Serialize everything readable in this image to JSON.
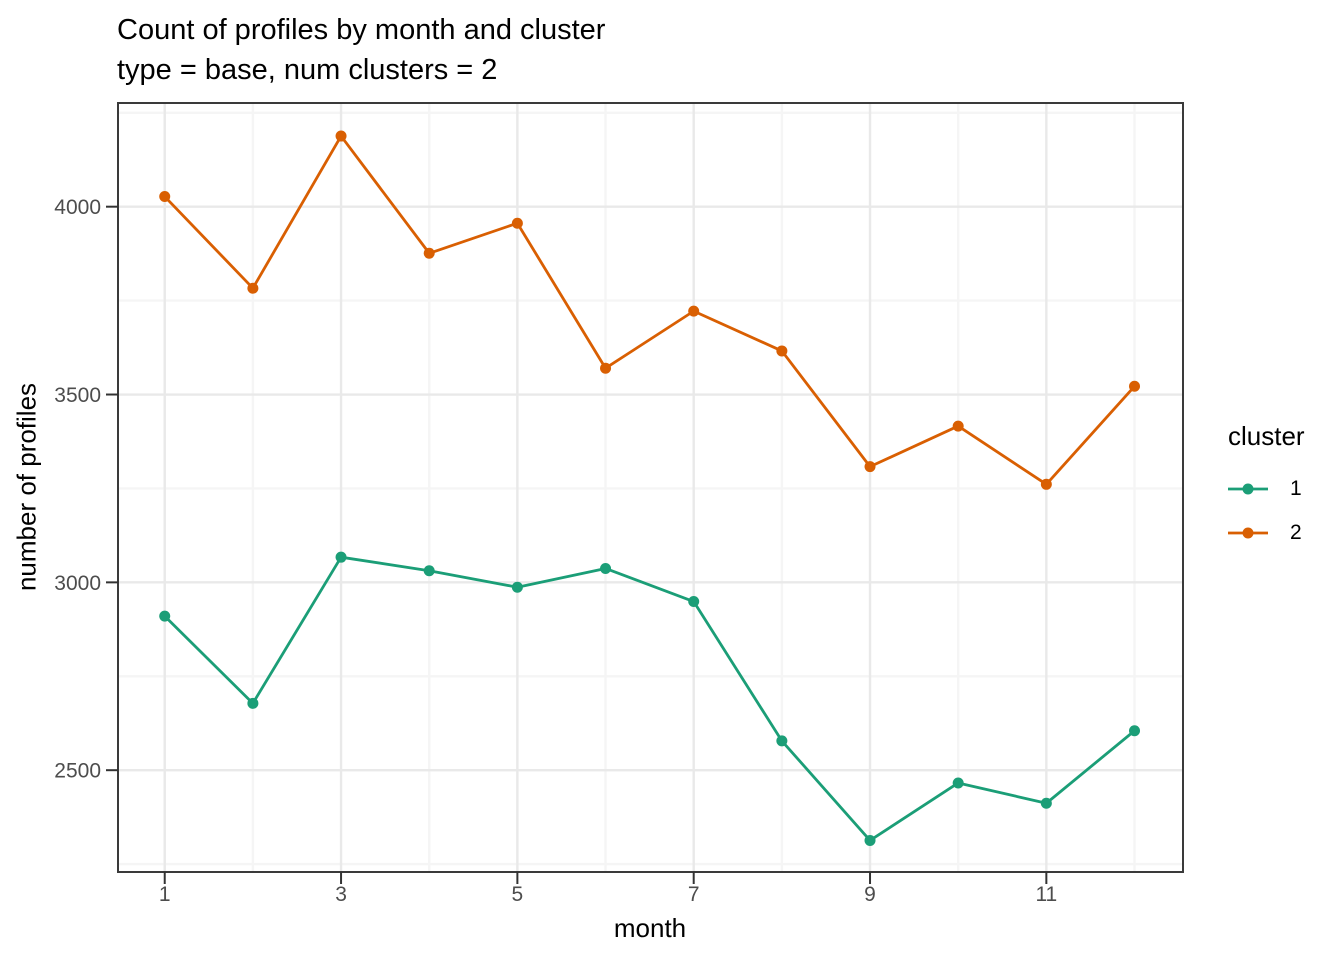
{
  "figure": {
    "background": "#FFFFFF"
  },
  "chart_data": {
    "type": "line",
    "title": "Count of profiles by month and cluster",
    "subtitle": "type = base, num clusters = 2",
    "xlabel": "month",
    "ylabel": "number of profiles",
    "x": [
      1,
      2,
      3,
      4,
      5,
      6,
      7,
      8,
      9,
      10,
      11,
      12
    ],
    "series": [
      {
        "name": "1",
        "color": "#1B9E77",
        "values": [
          2910,
          2678,
          3067,
          3031,
          2987,
          3037,
          2949,
          2578,
          2313,
          2466,
          2412,
          2605
        ]
      },
      {
        "name": "2",
        "color": "#D95F02",
        "values": [
          4027,
          3783,
          4188,
          3876,
          3956,
          3570,
          3722,
          3616,
          3308,
          3416,
          3261,
          3522
        ]
      }
    ],
    "legend": {
      "title": "cluster",
      "position": "right"
    },
    "axes": {
      "x_ticks": [
        1,
        3,
        5,
        7,
        9,
        11
      ],
      "x_tick_labels": [
        "1",
        "3",
        "5",
        "7",
        "9",
        "11"
      ],
      "x_minor_ticks": [
        2,
        4,
        6,
        8,
        10,
        12
      ],
      "y_ticks": [
        2500,
        3000,
        3500,
        4000
      ],
      "y_tick_labels": [
        "2500",
        "3000",
        "3500",
        "4000"
      ],
      "y_minor_ticks": [
        2250,
        2750,
        3250,
        3750,
        4250
      ],
      "xlim": [
        0.47,
        12.55
      ],
      "ylim": [
        2229,
        4276
      ],
      "grid": "major+minor"
    },
    "style": {
      "title_color": "#000000",
      "axis_title_color": "#000000",
      "axis_text_color": "#4D4D4D",
      "tick_color": "#333333",
      "panel_border_color": "#3A3A3A",
      "grid_major_color": "#E9E9E9",
      "grid_minor_color": "#F5F5F5",
      "panel_background": "#FFFFFF"
    }
  }
}
